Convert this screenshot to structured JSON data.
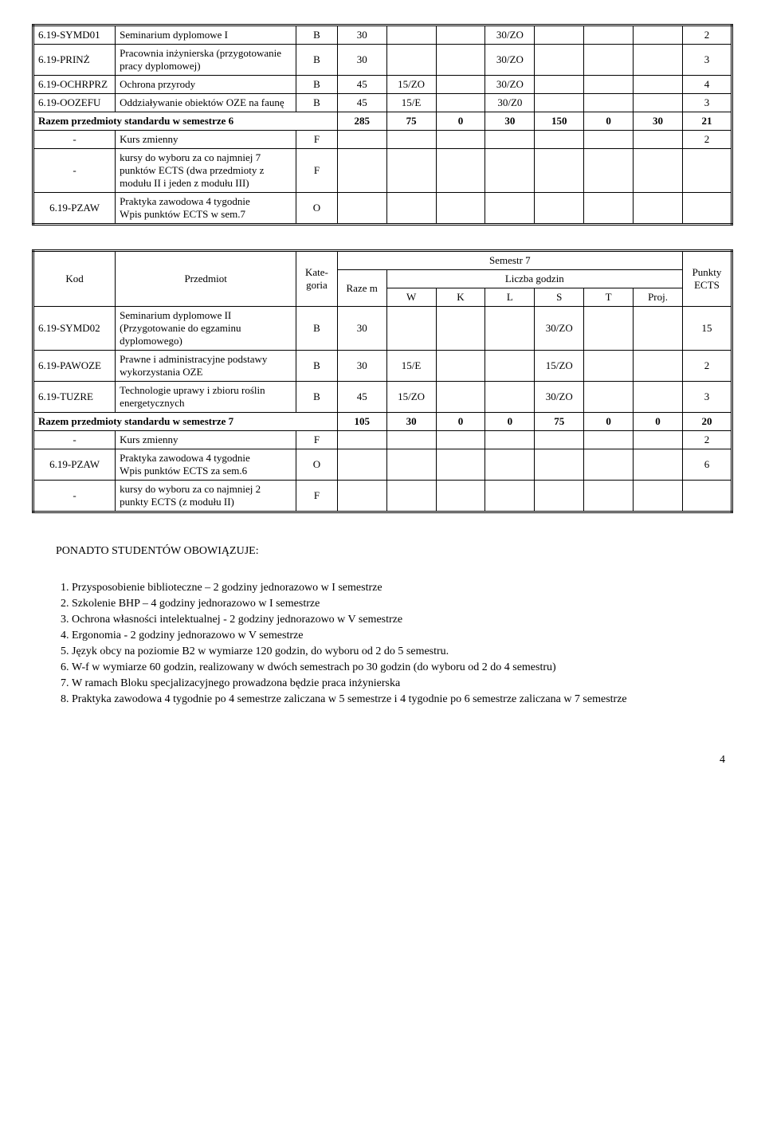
{
  "table1": {
    "rows": [
      {
        "code": "6.19-SYMD01",
        "subject": "Seminarium dyplomowe I",
        "cat": "B",
        "r": "30",
        "w": "",
        "k": "",
        "l": "30/ZO",
        "s": "",
        "t": "",
        "proj": "",
        "ects": "2"
      },
      {
        "code": "6.19-PRINŻ",
        "subject": "Pracownia inżynierska (przygotowanie pracy dyplomowej)",
        "cat": "B",
        "r": "30",
        "w": "",
        "k": "",
        "l": "30/ZO",
        "s": "",
        "t": "",
        "proj": "",
        "ects": "3"
      },
      {
        "code": "6.19-OCHRPRZ",
        "subject": "Ochrona przyrody",
        "cat": "B",
        "r": "45",
        "w": "15/ZO",
        "k": "",
        "l": "30/ZO",
        "s": "",
        "t": "",
        "proj": "",
        "ects": "4"
      },
      {
        "code": "6.19-OOZEFU",
        "subject": "Oddziaływanie obiektów OZE  na faunę",
        "cat": "B",
        "r": "45",
        "w": "15/E",
        "k": "",
        "l": "30/Z0",
        "s": "",
        "t": "",
        "proj": "",
        "ects": "3"
      }
    ],
    "sum": {
      "label": "Razem przedmioty standardu w semestrze 6",
      "r": "285",
      "w": "75",
      "k": "0",
      "l": "30",
      "s": "150",
      "t": "0",
      "proj": "30",
      "ects": "21"
    },
    "after": [
      {
        "code": "-",
        "subject": "Kurs zmienny",
        "cat": "F",
        "ects": "2"
      },
      {
        "code": "-",
        "subject": "kursy do wyboru za co najmniej  7 punktów ECTS (dwa przedmioty z modułu II i jeden z modułu III)",
        "cat": "F",
        "ects": ""
      },
      {
        "code": "6.19-PZAW",
        "subject": "Praktyka zawodowa 4 tygodnie\nWpis punktów ECTS w sem.7",
        "cat": "O",
        "ects": ""
      }
    ]
  },
  "table2": {
    "headers": {
      "code": "Kod",
      "subject": "Przedmiot",
      "cat": "Kate-goria",
      "sem": "Semestr 7",
      "hours": "Liczba godzin",
      "r": "Raze m",
      "w": "W",
      "k": "K",
      "l": "L",
      "s": "S",
      "t": "T",
      "proj": "Proj.",
      "ects": "Punkty ECTS"
    },
    "rows": [
      {
        "code": "6.19-SYMD02",
        "subject": "Seminarium dyplomowe II (Przygotowanie do egzaminu dyplomowego)",
        "cat": "B",
        "r": "30",
        "w": "",
        "k": "",
        "l": "",
        "s": "30/ZO",
        "t": "",
        "proj": "",
        "ects": "15"
      },
      {
        "code": "6.19-PAWOZE",
        "subject": "Prawne i administracyjne podstawy wykorzystania OZE",
        "cat": "B",
        "r": "30",
        "w": "15/E",
        "k": "",
        "l": "",
        "s": "15/ZO",
        "t": "",
        "proj": "",
        "ects": "2"
      },
      {
        "code": "6.19-TUZRE",
        "subject": "Technologie uprawy i zbioru roślin energetycznych",
        "cat": "B",
        "r": "45",
        "w": "15/ZO",
        "k": "",
        "l": "",
        "s": "30/ZO",
        "t": "",
        "proj": "",
        "ects": "3"
      }
    ],
    "sum": {
      "label": "Razem przedmioty standardu w semestrze 7",
      "r": "105",
      "w": "30",
      "k": "0",
      "l": "0",
      "s": "75",
      "t": "0",
      "proj": "0",
      "ects": "20"
    },
    "after": [
      {
        "code": "-",
        "subject": "Kurs zmienny",
        "cat": "F",
        "ects": "2"
      },
      {
        "code": "6.19-PZAW",
        "subject": "Praktyka zawodowa 4 tygodnie\nWpis punktów ECTS za sem.6",
        "cat": "O",
        "ects": "6"
      },
      {
        "code": "-",
        "subject": "kursy do wyboru za co najmniej 2 punkty ECTS (z modułu II)",
        "cat": "F",
        "ects": ""
      }
    ]
  },
  "notes": {
    "head": "PONADTO STUDENTÓW OBOWIĄZUJE:",
    "items": [
      "Przysposobienie biblioteczne – 2 godziny jednorazowo w I semestrze",
      "Szkolenie BHP – 4 godziny jednorazowo w I semestrze",
      "Ochrona własności intelektualnej - 2 godziny jednorazowo w V semestrze",
      "Ergonomia - 2 godziny jednorazowo w V semestrze",
      "Język obcy na poziomie B2 w wymiarze 120 godzin, do wyboru od 2 do 5 semestru.",
      "W-f w wymiarze 60 godzin, realizowany w dwóch semestrach po 30 godzin (do wyboru od 2 do 4 semestru)",
      "W ramach Bloku specjalizacyjnego prowadzona będzie praca inżynierska",
      "Praktyka zawodowa 4 tygodnie po 4 semestrze  zaliczana w 5 semestrze  i 4 tygodnie po 6 semestrze  zaliczana w 7 semestrze"
    ]
  },
  "page_number": "4"
}
